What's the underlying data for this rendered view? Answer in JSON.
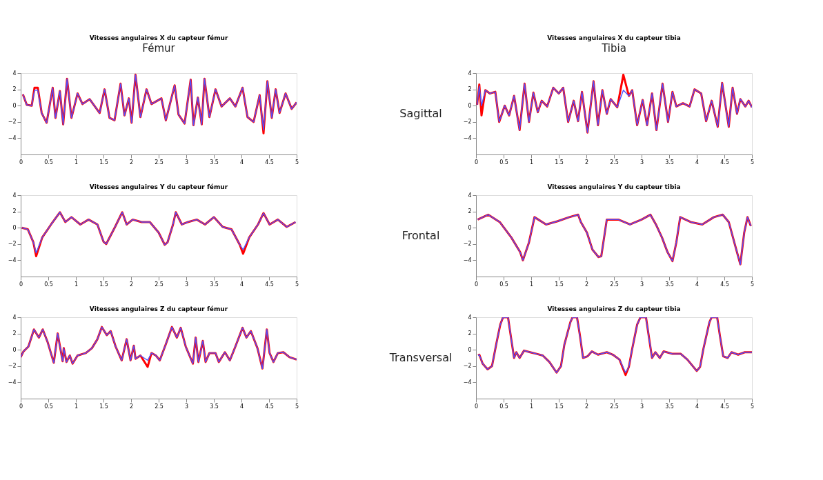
{
  "chart_data": [
    {
      "type": "line",
      "title": "Vitesses angulaires X du capteur fémur",
      "annotations": [
        "Fémur"
      ],
      "xlim": [
        0,
        5
      ],
      "xticks": [
        0,
        0.5,
        1,
        1.5,
        2,
        2.5,
        3,
        3.5,
        4,
        4.5,
        5
      ],
      "ylim": [
        -6,
        4
      ],
      "yticks": [
        -4,
        -2,
        0,
        2,
        4
      ],
      "grid": false,
      "x": [
        0.04,
        0.11,
        0.2,
        0.25,
        0.31,
        0.38,
        0.47,
        0.58,
        0.63,
        0.71,
        0.77,
        0.84,
        0.92,
        1.03,
        1.12,
        1.25,
        1.43,
        1.52,
        1.61,
        1.7,
        1.81,
        1.88,
        1.96,
        2.01,
        2.08,
        2.17,
        2.28,
        2.37,
        2.55,
        2.63,
        2.79,
        2.86,
        2.97,
        3.08,
        3.13,
        3.21,
        3.28,
        3.33,
        3.42,
        3.53,
        3.64,
        3.79,
        3.89,
        4.02,
        4.11,
        4.22,
        4.33,
        4.4,
        4.47,
        4.55,
        4.62,
        4.69,
        4.8,
        4.91,
        5
      ],
      "series": [
        {
          "color": "#ff0000",
          "values": [
            1.4,
            0.1,
            0,
            2.2,
            2.2,
            -0.9,
            -2.1,
            2.2,
            -1.5,
            1.8,
            -2.3,
            3.3,
            -1.5,
            1.5,
            0.2,
            0.8,
            -0.9,
            2,
            -1.5,
            -1.8,
            2.7,
            -1.2,
            0.9,
            -2.1,
            3.8,
            -1.4,
            2,
            0.2,
            0.9,
            -1.8,
            2.5,
            -1.1,
            -2.2,
            3.2,
            -2.4,
            1,
            -2.3,
            3.3,
            -1.4,
            2,
            -0.1,
            0.9,
            -0.1,
            2.2,
            -1.4,
            -2,
            1.3,
            -3.4,
            3,
            -1.5,
            2,
            -0.9,
            1.5,
            -0.4,
            0.4
          ]
        },
        {
          "color": "#5050ff",
          "values": [
            1.4,
            0.1,
            0,
            1.9,
            1.9,
            -0.9,
            -2.1,
            2.2,
            -1.5,
            1.8,
            -2.3,
            3.3,
            -1.5,
            1.5,
            0.2,
            0.8,
            -0.9,
            2,
            -1.5,
            -1.8,
            2.7,
            -1.2,
            0.9,
            -2.1,
            3.8,
            -1.4,
            2,
            0.2,
            0.9,
            -1.8,
            2.5,
            -1.1,
            -2.2,
            3.2,
            -2.4,
            1,
            -2.3,
            3.3,
            -1.4,
            2,
            -0.1,
            0.9,
            -0.1,
            2.2,
            -1.4,
            -2,
            1.3,
            -3,
            3,
            -1.5,
            2,
            -0.9,
            1.5,
            -0.4,
            0.4
          ]
        }
      ]
    },
    {
      "type": "line",
      "title": "Vitesses angulaires X du capteur tibia",
      "annotations": [
        "Tibia",
        "Sagittal"
      ],
      "xlim": [
        0,
        5
      ],
      "xticks": [
        0,
        0.5,
        1,
        1.5,
        2,
        2.5,
        3,
        3.5,
        4,
        4.5,
        5
      ],
      "ylim": [
        -6,
        4
      ],
      "yticks": [
        -4,
        -2,
        0,
        2,
        4
      ],
      "grid": false,
      "x": [
        0.02,
        0.06,
        0.1,
        0.17,
        0.25,
        0.35,
        0.42,
        0.52,
        0.6,
        0.69,
        0.79,
        0.88,
        0.96,
        1.04,
        1.12,
        1.19,
        1.29,
        1.4,
        1.5,
        1.58,
        1.67,
        1.77,
        1.85,
        1.92,
        2.02,
        2.13,
        2.21,
        2.29,
        2.37,
        2.44,
        2.56,
        2.67,
        2.77,
        2.83,
        2.92,
        3.02,
        3.1,
        3.19,
        3.27,
        3.38,
        3.48,
        3.56,
        3.63,
        3.75,
        3.87,
        3.96,
        4.08,
        4.17,
        4.27,
        4.38,
        4.46,
        4.58,
        4.65,
        4.73,
        4.79,
        4.88,
        4.94,
        5
      ],
      "series": [
        {
          "color": "#ff0000",
          "values": [
            0.1,
            2.6,
            -1.2,
            1.9,
            1.5,
            1.7,
            -2,
            0,
            -1.2,
            1.2,
            -3,
            2.7,
            -2,
            1.6,
            -0.8,
            0.6,
            -0.1,
            2.2,
            1.5,
            2.2,
            -2,
            0.6,
            -1.9,
            1.7,
            -3.3,
            3,
            -2.4,
            1.9,
            -1,
            0.8,
            -0.2,
            3.8,
            1.2,
            1.9,
            -2.4,
            0.7,
            -2.4,
            1.5,
            -3,
            2.7,
            -2,
            1.7,
            -0.1,
            0.3,
            -0.1,
            2,
            1.5,
            -1.9,
            0.6,
            -2.6,
            2.8,
            -2.6,
            2.2,
            -1,
            0.8,
            -0.1,
            0.6,
            -0.2
          ]
        },
        {
          "color": "#5050ff",
          "values": [
            0.1,
            2.4,
            0,
            1.9,
            1.5,
            1.7,
            -2,
            0,
            -1.2,
            1.2,
            -3,
            2.7,
            -2,
            1.6,
            -0.8,
            0.6,
            -0.1,
            2.2,
            1.5,
            2.2,
            -2,
            0.6,
            -1.9,
            1.7,
            -3.3,
            3,
            -2.4,
            1.9,
            -1,
            0.8,
            -0.2,
            1.9,
            1.2,
            1.9,
            -2.4,
            0.7,
            -2.4,
            1.5,
            -3,
            2.7,
            -2,
            1.7,
            -0.1,
            0.3,
            -0.1,
            2,
            1.5,
            -1.9,
            0.6,
            -2.6,
            2.8,
            -2.6,
            2.2,
            -1,
            0.8,
            -0.1,
            0.6,
            -0.2
          ]
        }
      ]
    },
    {
      "type": "line",
      "title": "Vitesses angulaires Y du capteur fémur",
      "xlim": [
        0,
        5
      ],
      "xticks": [
        0,
        0.5,
        1,
        1.5,
        2,
        2.5,
        3,
        3.5,
        4,
        4.5,
        5
      ],
      "ylim": [
        -6,
        4
      ],
      "yticks": [
        -4,
        -2,
        0,
        2,
        4
      ],
      "grid": false,
      "x": [
        0.02,
        0.13,
        0.23,
        0.28,
        0.39,
        0.55,
        0.71,
        0.81,
        0.92,
        1.08,
        1.23,
        1.39,
        1.5,
        1.55,
        1.71,
        1.84,
        1.92,
        2.03,
        2.19,
        2.34,
        2.5,
        2.61,
        2.66,
        2.76,
        2.81,
        2.92,
        3.03,
        3.19,
        3.34,
        3.5,
        3.66,
        3.82,
        3.97,
        4.03,
        4.14,
        4.3,
        4.4,
        4.51,
        4.66,
        4.82,
        4.98
      ],
      "series": [
        {
          "color": "#ff0000",
          "values": [
            0,
            -0.2,
            -1.8,
            -3.5,
            -1.2,
            0.4,
            1.9,
            0.7,
            1.3,
            0.4,
            1,
            0.4,
            -1.7,
            -2,
            0.1,
            1.9,
            0.4,
            1,
            0.7,
            0.7,
            -0.6,
            -2.1,
            -1.8,
            0.4,
            1.9,
            0.4,
            0.7,
            1,
            0.4,
            1.3,
            0.1,
            -0.2,
            -2.1,
            -3.2,
            -1.2,
            0.4,
            1.8,
            0.4,
            1,
            0.1,
            0.7
          ]
        },
        {
          "color": "#5050ff",
          "values": [
            0,
            -0.2,
            -1.8,
            -3.1,
            -1.2,
            0.4,
            1.9,
            0.7,
            1.3,
            0.4,
            1,
            0.4,
            -1.7,
            -2,
            0.1,
            1.9,
            0.4,
            1,
            0.7,
            0.7,
            -0.6,
            -2.1,
            -1.8,
            0.4,
            1.9,
            0.4,
            0.7,
            1,
            0.4,
            1.3,
            0.1,
            -0.2,
            -2.1,
            -2.7,
            -1.2,
            0.4,
            1.8,
            0.4,
            1,
            0.1,
            0.7
          ]
        }
      ]
    },
    {
      "type": "line",
      "title": "Vitesses angulaires Y du capteur tibia",
      "annotations": [
        "Frontal"
      ],
      "xlim": [
        0,
        5
      ],
      "xticks": [
        0,
        0.5,
        1,
        1.5,
        2,
        2.5,
        3,
        3.5,
        4,
        4.5,
        5
      ],
      "ylim": [
        -6,
        4
      ],
      "yticks": [
        -4,
        -2,
        0,
        2,
        4
      ],
      "grid": false,
      "x": [
        0.03,
        0.22,
        0.43,
        0.64,
        0.8,
        0.85,
        0.96,
        1.06,
        1.27,
        1.48,
        1.69,
        1.85,
        1.9,
        2.01,
        2.11,
        2.22,
        2.27,
        2.37,
        2.58,
        2.79,
        3,
        3.16,
        3.26,
        3.37,
        3.47,
        3.56,
        3.63,
        3.7,
        3.89,
        4.1,
        4.31,
        4.47,
        4.58,
        4.68,
        4.79,
        4.86,
        4.92,
        4.98
      ],
      "series": [
        {
          "color": "#ff0000",
          "values": [
            1,
            1.6,
            0.7,
            -1.2,
            -3,
            -4,
            -1.8,
            1.3,
            0.4,
            0.8,
            1.3,
            1.6,
            0.7,
            -0.6,
            -2.7,
            -3.6,
            -3.5,
            1,
            1,
            0.4,
            1,
            1.6,
            0.4,
            -1.2,
            -3,
            -4.1,
            -1.8,
            1.3,
            0.7,
            0.4,
            1.3,
            1.6,
            0.7,
            -1.8,
            -4.5,
            -0.6,
            1.3,
            0.2
          ]
        },
        {
          "color": "#5050ff",
          "values": [
            1,
            1.6,
            0.7,
            -1.2,
            -3,
            -4,
            -1.8,
            1.3,
            0.4,
            0.8,
            1.3,
            1.6,
            0.7,
            -0.6,
            -2.7,
            -3.6,
            -3.5,
            1,
            1,
            0.4,
            1,
            1.6,
            0.4,
            -1.2,
            -3,
            -4.1,
            -1.8,
            1.3,
            0.7,
            0.4,
            1.3,
            1.6,
            0.7,
            -1.8,
            -4.5,
            -0.6,
            1.3,
            0.2
          ]
        }
      ]
    },
    {
      "type": "line",
      "title": "Vitesses angulaires Z du capteur fémur",
      "xlim": [
        0,
        5
      ],
      "xticks": [
        0,
        0.5,
        1,
        1.5,
        2,
        2.5,
        3,
        3.5,
        4,
        4.5,
        5
      ],
      "ylim": [
        -6,
        4
      ],
      "yticks": [
        -4,
        -2,
        0,
        2,
        4
      ],
      "grid": false,
      "x": [
        0,
        0.05,
        0.14,
        0.24,
        0.33,
        0.4,
        0.49,
        0.6,
        0.67,
        0.76,
        0.78,
        0.83,
        0.89,
        0.94,
        1.03,
        1.18,
        1.29,
        1.39,
        1.47,
        1.56,
        1.63,
        1.72,
        1.83,
        1.92,
        1.99,
        2.05,
        2.08,
        2.17,
        2.3,
        2.37,
        2.45,
        2.52,
        2.63,
        2.74,
        2.83,
        2.9,
        2.99,
        3.12,
        3.17,
        3.22,
        3.3,
        3.35,
        3.42,
        3.53,
        3.59,
        3.7,
        3.79,
        3.89,
        4.02,
        4.09,
        4.17,
        4.29,
        4.38,
        4.46,
        4.51,
        4.58,
        4.66,
        4.76,
        4.87,
        5
      ],
      "series": [
        {
          "color": "#ff0000",
          "values": [
            -0.9,
            -0.2,
            0.4,
            2.5,
            1.5,
            2.5,
            0.9,
            -1.6,
            2,
            -1.4,
            0.2,
            -1.5,
            -0.7,
            -1.7,
            -0.7,
            -0.4,
            0.2,
            1.3,
            2.8,
            1.8,
            2.3,
            0.4,
            -1.3,
            1.3,
            -1.3,
            0.5,
            -1.1,
            -0.7,
            -2.1,
            -0.4,
            -0.7,
            -1.3,
            0.7,
            2.8,
            1.5,
            2.7,
            0.4,
            -1.7,
            1.5,
            -1.5,
            1.1,
            -1.5,
            -0.4,
            -0.4,
            -1.5,
            -0.3,
            -1.3,
            0.4,
            2.7,
            1.5,
            2.3,
            0.2,
            -2.3,
            2.5,
            -0.4,
            -1.5,
            -0.4,
            -0.3,
            -0.9,
            -1.2
          ]
        },
        {
          "color": "#5050ff",
          "values": [
            -0.9,
            -0.2,
            0.4,
            2.5,
            1.5,
            2.5,
            0.9,
            -1.6,
            2,
            -1.4,
            0.2,
            -1.5,
            -0.7,
            -1.7,
            -0.7,
            -0.4,
            0.2,
            1.3,
            2.8,
            1.8,
            2.3,
            0.4,
            -1.3,
            1.3,
            -1.3,
            0.5,
            -1.1,
            -0.7,
            -1.3,
            -0.4,
            -0.7,
            -1.3,
            0.7,
            2.8,
            1.5,
            2.7,
            0.4,
            -1.7,
            1.5,
            -1.5,
            1.1,
            -1.5,
            -0.4,
            -0.4,
            -1.5,
            -0.3,
            -1.3,
            0.4,
            2.7,
            1.5,
            2.3,
            0.2,
            -2.3,
            2.5,
            -0.4,
            -1.5,
            -0.4,
            -0.3,
            -0.9,
            -1.2
          ]
        }
      ]
    },
    {
      "type": "line",
      "title": "Vitesses angulaires Z du capteur tibia",
      "annotations": [
        "Transversal"
      ],
      "xlim": [
        0,
        5
      ],
      "xticks": [
        0,
        0.5,
        1,
        1.5,
        2,
        2.5,
        3,
        3.5,
        4,
        4.5,
        5
      ],
      "ylim": [
        -6,
        4
      ],
      "yticks": [
        -4,
        -2,
        0,
        2,
        4
      ],
      "grid": false,
      "x": [
        0.04,
        0.06,
        0.12,
        0.21,
        0.29,
        0.37,
        0.44,
        0.49,
        0.58,
        0.63,
        0.69,
        0.73,
        0.79,
        0.87,
        0.98,
        1.1,
        1.21,
        1.33,
        1.46,
        1.54,
        1.6,
        1.71,
        1.75,
        1.83,
        1.88,
        1.94,
        2.02,
        2.1,
        2.21,
        2.37,
        2.48,
        2.6,
        2.71,
        2.77,
        2.83,
        2.92,
        2.98,
        3.08,
        3.13,
        3.19,
        3.25,
        3.33,
        3.4,
        3.56,
        3.71,
        3.83,
        4,
        4.06,
        4.12,
        4.23,
        4.27,
        4.37,
        4.42,
        4.48,
        4.56,
        4.63,
        4.75,
        4.87,
        5
      ],
      "series": [
        {
          "color": "#ff0000",
          "values": [
            -0.7,
            -0.6,
            -1.7,
            -2.4,
            -2,
            0.8,
            3.1,
            4,
            4,
            1.7,
            -1,
            -0.3,
            -1,
            -0.1,
            -0.3,
            -0.5,
            -0.7,
            -1.5,
            -2.8,
            -2,
            0.6,
            3.4,
            4,
            4,
            1.9,
            -1,
            -0.8,
            -0.2,
            -0.6,
            -0.3,
            -0.6,
            -1.2,
            -3.1,
            -2.1,
            0.1,
            3.1,
            4,
            4,
            1.7,
            -1,
            -0.3,
            -1,
            -0.2,
            -0.5,
            -0.5,
            -1.2,
            -2.6,
            -2.1,
            0.1,
            3.4,
            4,
            4,
            1.7,
            -0.8,
            -1,
            -0.3,
            -0.6,
            -0.3,
            -0.3
          ]
        },
        {
          "color": "#5050ff",
          "values": [
            -0.7,
            -0.6,
            -1.7,
            -2.4,
            -2,
            0.8,
            3.1,
            4,
            4,
            1.7,
            -1,
            -0.3,
            -1,
            -0.1,
            -0.3,
            -0.5,
            -0.7,
            -1.5,
            -2.8,
            -2,
            0.6,
            3.4,
            4,
            4,
            1.9,
            -1,
            -0.8,
            -0.2,
            -0.6,
            -0.3,
            -0.6,
            -1.2,
            -2.8,
            -2.1,
            0.1,
            3.1,
            4,
            4,
            1.7,
            -1,
            -0.3,
            -1,
            -0.2,
            -0.5,
            -0.5,
            -1.2,
            -2.6,
            -2.1,
            0.1,
            3.4,
            4,
            4,
            1.7,
            -0.8,
            -1,
            -0.3,
            -0.6,
            -0.3,
            -0.3
          ]
        }
      ]
    }
  ]
}
